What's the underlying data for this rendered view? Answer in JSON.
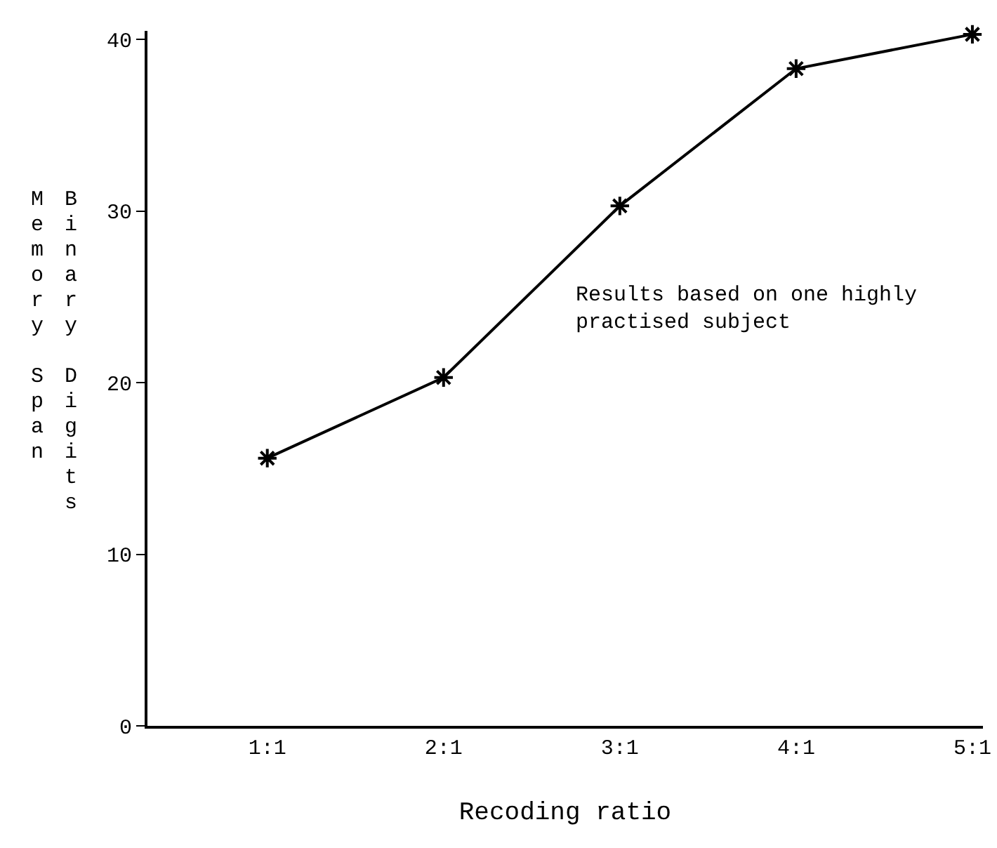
{
  "chart_data": {
    "type": "line",
    "categories": [
      "1:1",
      "2:1",
      "3:1",
      "4:1",
      "5:1"
    ],
    "series": [
      {
        "color": "#000000",
        "values": [
          15.6,
          20.3,
          30.3,
          38.3,
          40.3
        ]
      }
    ],
    "xlabel": "Recoding ratio",
    "ylabel": "Memory Span\nBinary Digits",
    "ylim": [
      0,
      40.5
    ],
    "yticks": [
      0,
      10,
      20,
      30,
      40
    ],
    "annotations": [
      "Results based on one highly\npractised subject"
    ],
    "grid": false,
    "marker": "cross",
    "line_style": "solid"
  }
}
